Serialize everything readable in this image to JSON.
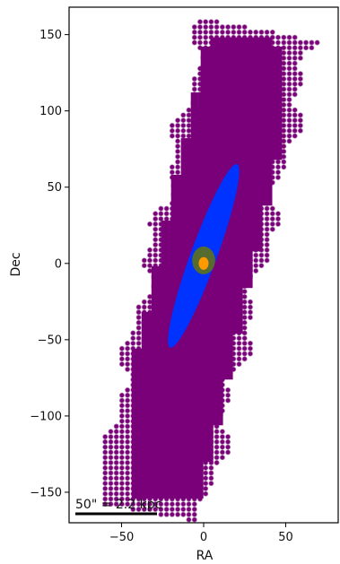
{
  "chart_data": {
    "type": "scatter",
    "title": "",
    "xlabel": "RA",
    "ylabel": "Dec",
    "xlim": [
      -82,
      82
    ],
    "ylim": [
      -170,
      168
    ],
    "xticks": [
      -50,
      0,
      50
    ],
    "yticks": [
      -150,
      -100,
      -50,
      0,
      50,
      100,
      150
    ],
    "xtick_labels": [
      "−50",
      "0",
      "50"
    ],
    "ytick_labels": [
      "−150",
      "−100",
      "−50",
      "0",
      "50",
      "100",
      "150"
    ],
    "grid": false,
    "colors": {
      "outer_field": "#7a007a",
      "outer_edge": "#b07ab0",
      "disk": "#0033ff",
      "core": "#556b2f",
      "nucleus": "#ff9900",
      "axes": "#000000"
    },
    "regions": [
      {
        "name": "outer-footprint",
        "shape": "rotated rectangle",
        "center": [
          0,
          -5
        ],
        "half_width": 34,
        "half_height": 162,
        "angle_deg": 12
      },
      {
        "name": "disk",
        "shape": "ellipse",
        "center": [
          0,
          5
        ],
        "semi_major": 64,
        "semi_minor": 8,
        "angle_deg": 20
      },
      {
        "name": "core",
        "shape": "ellipse",
        "center": [
          0,
          2
        ],
        "radius": 7
      },
      {
        "name": "nucleus",
        "shape": "ellipse",
        "center": [
          0,
          0
        ],
        "radius": 3
      }
    ],
    "scalebar": {
      "label": "50\" = 2.2 kpc",
      "length_arcsec": 50
    }
  }
}
